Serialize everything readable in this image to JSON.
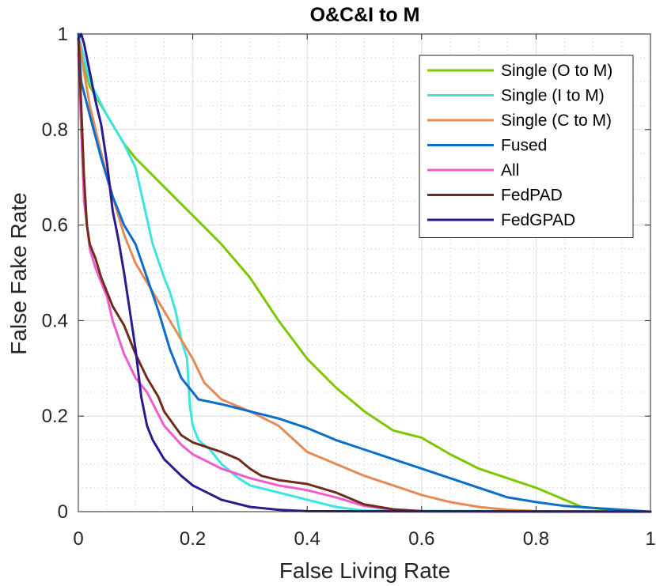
{
  "chart_data": {
    "type": "line",
    "title": "O&C&I to M",
    "xlabel": "False Living Rate",
    "ylabel": "False Fake Rate",
    "xlim": [
      0,
      1
    ],
    "ylim": [
      0,
      1
    ],
    "xticks": [
      0,
      0.2,
      0.4,
      0.6,
      0.8,
      1
    ],
    "yticks": [
      0,
      0.2,
      0.4,
      0.6,
      0.8,
      1
    ],
    "xtick_labels": [
      "0",
      "0.2",
      "0.4",
      "0.6",
      "0.8",
      "1"
    ],
    "ytick_labels": [
      "0",
      "0.2",
      "0.4",
      "0.6",
      "0.8",
      "1"
    ],
    "grid": true,
    "legend_position": "top-right",
    "series": [
      {
        "name": "Single (O to M)",
        "color": "#7ec700",
        "points": [
          [
            0,
            1
          ],
          [
            0.01,
            0.93
          ],
          [
            0.02,
            0.89
          ],
          [
            0.05,
            0.83
          ],
          [
            0.08,
            0.77
          ],
          [
            0.1,
            0.74
          ],
          [
            0.15,
            0.68
          ],
          [
            0.2,
            0.62
          ],
          [
            0.25,
            0.56
          ],
          [
            0.3,
            0.49
          ],
          [
            0.35,
            0.4
          ],
          [
            0.4,
            0.32
          ],
          [
            0.45,
            0.26
          ],
          [
            0.5,
            0.21
          ],
          [
            0.55,
            0.17
          ],
          [
            0.6,
            0.155
          ],
          [
            0.65,
            0.12
          ],
          [
            0.7,
            0.09
          ],
          [
            0.75,
            0.07
          ],
          [
            0.8,
            0.05
          ],
          [
            0.85,
            0.025
          ],
          [
            0.88,
            0.01
          ],
          [
            0.92,
            0.005
          ],
          [
            1,
            0
          ]
        ]
      },
      {
        "name": "Single (I to M)",
        "color": "#3de3e3",
        "points": [
          [
            0,
            1
          ],
          [
            0.01,
            0.95
          ],
          [
            0.02,
            0.9
          ],
          [
            0.05,
            0.83
          ],
          [
            0.08,
            0.77
          ],
          [
            0.1,
            0.72
          ],
          [
            0.13,
            0.56
          ],
          [
            0.15,
            0.49
          ],
          [
            0.16,
            0.46
          ],
          [
            0.17,
            0.42
          ],
          [
            0.18,
            0.36
          ],
          [
            0.19,
            0.32
          ],
          [
            0.195,
            0.22
          ],
          [
            0.2,
            0.18
          ],
          [
            0.21,
            0.15
          ],
          [
            0.23,
            0.13
          ],
          [
            0.25,
            0.1
          ],
          [
            0.28,
            0.07
          ],
          [
            0.3,
            0.055
          ],
          [
            0.35,
            0.04
          ],
          [
            0.4,
            0.025
          ],
          [
            0.45,
            0.01
          ],
          [
            0.5,
            0.002
          ],
          [
            1,
            0
          ]
        ]
      },
      {
        "name": "Single (C to M)",
        "color": "#e68a55",
        "points": [
          [
            0,
            1
          ],
          [
            0.01,
            0.92
          ],
          [
            0.02,
            0.85
          ],
          [
            0.04,
            0.75
          ],
          [
            0.06,
            0.66
          ],
          [
            0.08,
            0.58
          ],
          [
            0.1,
            0.52
          ],
          [
            0.12,
            0.48
          ],
          [
            0.15,
            0.42
          ],
          [
            0.18,
            0.36
          ],
          [
            0.2,
            0.32
          ],
          [
            0.22,
            0.27
          ],
          [
            0.25,
            0.235
          ],
          [
            0.3,
            0.21
          ],
          [
            0.35,
            0.18
          ],
          [
            0.4,
            0.125
          ],
          [
            0.45,
            0.1
          ],
          [
            0.5,
            0.075
          ],
          [
            0.55,
            0.055
          ],
          [
            0.6,
            0.035
          ],
          [
            0.65,
            0.02
          ],
          [
            0.7,
            0.01
          ],
          [
            0.75,
            0.004
          ],
          [
            0.8,
            0.001
          ],
          [
            1,
            0
          ]
        ]
      },
      {
        "name": "Fused",
        "color": "#0d6dc9",
        "points": [
          [
            0,
            1
          ],
          [
            0.005,
            0.9
          ],
          [
            0.02,
            0.83
          ],
          [
            0.04,
            0.74
          ],
          [
            0.06,
            0.66
          ],
          [
            0.08,
            0.6
          ],
          [
            0.1,
            0.56
          ],
          [
            0.12,
            0.49
          ],
          [
            0.14,
            0.42
          ],
          [
            0.16,
            0.34
          ],
          [
            0.18,
            0.28
          ],
          [
            0.2,
            0.25
          ],
          [
            0.21,
            0.235
          ],
          [
            0.25,
            0.225
          ],
          [
            0.3,
            0.21
          ],
          [
            0.35,
            0.195
          ],
          [
            0.4,
            0.175
          ],
          [
            0.45,
            0.15
          ],
          [
            0.5,
            0.13
          ],
          [
            0.55,
            0.11
          ],
          [
            0.6,
            0.09
          ],
          [
            0.65,
            0.07
          ],
          [
            0.7,
            0.05
          ],
          [
            0.75,
            0.03
          ],
          [
            0.8,
            0.02
          ],
          [
            0.85,
            0.012
          ],
          [
            0.9,
            0.008
          ],
          [
            0.95,
            0.004
          ],
          [
            1,
            0
          ]
        ]
      },
      {
        "name": "All",
        "color": "#f05ccc",
        "points": [
          [
            0,
            0.96
          ],
          [
            0.005,
            0.8
          ],
          [
            0.01,
            0.65
          ],
          [
            0.02,
            0.55
          ],
          [
            0.03,
            0.51
          ],
          [
            0.05,
            0.45
          ],
          [
            0.06,
            0.4
          ],
          [
            0.08,
            0.33
          ],
          [
            0.1,
            0.28
          ],
          [
            0.12,
            0.25
          ],
          [
            0.15,
            0.18
          ],
          [
            0.18,
            0.14
          ],
          [
            0.2,
            0.12
          ],
          [
            0.25,
            0.09
          ],
          [
            0.3,
            0.07
          ],
          [
            0.35,
            0.055
          ],
          [
            0.4,
            0.045
          ],
          [
            0.45,
            0.03
          ],
          [
            0.5,
            0.012
          ],
          [
            0.55,
            0.004
          ],
          [
            0.6,
            0.001
          ],
          [
            1,
            0
          ]
        ]
      },
      {
        "name": "FedPAD",
        "color": "#6e2c1c",
        "points": [
          [
            0,
            0.99
          ],
          [
            0.005,
            0.85
          ],
          [
            0.01,
            0.7
          ],
          [
            0.015,
            0.6
          ],
          [
            0.02,
            0.56
          ],
          [
            0.03,
            0.53
          ],
          [
            0.04,
            0.49
          ],
          [
            0.06,
            0.43
          ],
          [
            0.08,
            0.39
          ],
          [
            0.1,
            0.33
          ],
          [
            0.12,
            0.28
          ],
          [
            0.14,
            0.24
          ],
          [
            0.15,
            0.21
          ],
          [
            0.18,
            0.16
          ],
          [
            0.2,
            0.145
          ],
          [
            0.25,
            0.125
          ],
          [
            0.28,
            0.11
          ],
          [
            0.3,
            0.09
          ],
          [
            0.32,
            0.075
          ],
          [
            0.35,
            0.066
          ],
          [
            0.4,
            0.058
          ],
          [
            0.45,
            0.04
          ],
          [
            0.5,
            0.015
          ],
          [
            0.55,
            0.005
          ],
          [
            0.6,
            0.001
          ],
          [
            1,
            0
          ]
        ]
      },
      {
        "name": "FedGPAD",
        "color": "#2a1a8e",
        "points": [
          [
            0,
            0.99
          ],
          [
            0.005,
            1
          ],
          [
            0.01,
            0.98
          ],
          [
            0.02,
            0.92
          ],
          [
            0.03,
            0.86
          ],
          [
            0.04,
            0.81
          ],
          [
            0.05,
            0.73
          ],
          [
            0.06,
            0.63
          ],
          [
            0.07,
            0.57
          ],
          [
            0.08,
            0.5
          ],
          [
            0.09,
            0.42
          ],
          [
            0.1,
            0.34
          ],
          [
            0.11,
            0.24
          ],
          [
            0.12,
            0.18
          ],
          [
            0.13,
            0.15
          ],
          [
            0.15,
            0.11
          ],
          [
            0.18,
            0.075
          ],
          [
            0.2,
            0.055
          ],
          [
            0.25,
            0.025
          ],
          [
            0.3,
            0.01
          ],
          [
            0.35,
            0.004
          ],
          [
            0.4,
            0.001
          ],
          [
            1,
            0
          ]
        ]
      }
    ]
  }
}
